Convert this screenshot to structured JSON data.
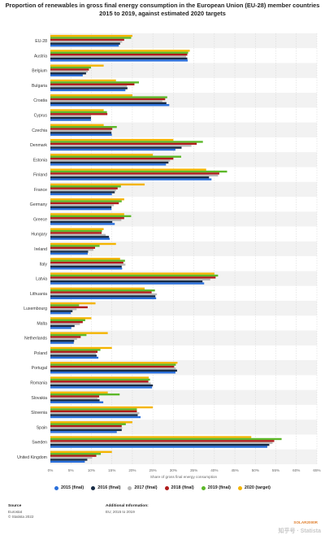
{
  "title": "Proportion of renewables in gross final energy consumption in the European Union (EU-28) member countries 2015 to 2019, against estimated 2020 targets",
  "legend": [
    {
      "label": "2015 (final)",
      "color": "#2a6fdb"
    },
    {
      "label": "2016 (final)",
      "color": "#172b45"
    },
    {
      "label": "2017 (final)",
      "color": "#b8b8b8"
    },
    {
      "label": "2018 (final)",
      "color": "#b01c1c"
    },
    {
      "label": "2019 (final)",
      "color": "#5cb829"
    },
    {
      "label": "2020 (target)",
      "color": "#f4b400"
    }
  ],
  "footer": {
    "source_heading": "Source",
    "source_lines": [
      "Eurostat",
      "© Statista 2022"
    ],
    "info_heading": "Additional Information:",
    "info_lines": [
      "EU; 2015 to 2019"
    ],
    "watermark_orange": "SOLAR2000R",
    "watermark_bottom": "知乎号 · Statista"
  },
  "chart_data": {
    "type": "bar",
    "orientation": "horizontal",
    "title": "Proportion of renewables in gross final energy consumption in the European Union (EU-28) member countries 2015 to 2019, against estimated 2020 targets",
    "xlabel": "Share of gross final energy consumption",
    "xlim": [
      0,
      65
    ],
    "xticks": [
      "0%",
      "5%",
      "10%",
      "15%",
      "20%",
      "25%",
      "30%",
      "35%",
      "40%",
      "45%",
      "50%",
      "55%",
      "60%",
      "65%"
    ],
    "grid": true,
    "legend_position": "bottom",
    "categories": [
      "EU-28",
      "Austria",
      "Belgium",
      "Bulgaria",
      "Croatia",
      "Cyprus",
      "Czechia",
      "Denmark",
      "Estonia",
      "Finland",
      "France",
      "Germany",
      "Greece",
      "Hungary",
      "Ireland",
      "Italy",
      "Latvia",
      "Lithuania",
      "Luxembourg",
      "Malta",
      "Netherlands",
      "Poland",
      "Portugal",
      "Romania",
      "Slovakia",
      "Slovenia",
      "Spain",
      "Sweden",
      "United Kingdom"
    ],
    "series": [
      {
        "name": "2015 (final)",
        "values": [
          16.7,
          33.5,
          7.9,
          18.3,
          29.0,
          9.9,
          15.0,
          30.5,
          28.2,
          39.3,
          15.0,
          14.9,
          15.7,
          14.5,
          9.1,
          17.5,
          37.5,
          25.8,
          5.0,
          5.1,
          5.7,
          11.7,
          30.5,
          24.8,
          12.9,
          22.0,
          16.2,
          52.9,
          8.4
        ]
      },
      {
        "name": "2016 (final)",
        "values": [
          17.0,
          33.4,
          8.7,
          18.8,
          28.3,
          9.9,
          14.9,
          32.0,
          28.8,
          38.7,
          15.7,
          14.9,
          15.1,
          14.3,
          9.2,
          17.4,
          37.1,
          25.6,
          5.4,
          5.9,
          5.8,
          11.3,
          30.9,
          25.0,
          12.0,
          21.3,
          17.4,
          53.4,
          9.0
        ]
      },
      {
        "name": "2017 (final)",
        "values": [
          17.5,
          33.1,
          9.1,
          18.7,
          27.3,
          9.9,
          14.8,
          34.4,
          29.2,
          40.9,
          16.0,
          15.5,
          17.3,
          13.5,
          10.5,
          18.3,
          39.0,
          26.0,
          6.4,
          7.2,
          6.5,
          11.1,
          30.6,
          24.5,
          11.5,
          21.7,
          17.5,
          54.2,
          10.2
        ]
      },
      {
        "name": "2018 (final)",
        "values": [
          18.0,
          33.4,
          9.4,
          20.5,
          28.0,
          13.9,
          15.1,
          35.7,
          30.0,
          41.2,
          16.4,
          16.7,
          18.0,
          12.5,
          10.9,
          17.8,
          40.3,
          24.7,
          9.1,
          7.9,
          7.4,
          11.5,
          30.2,
          23.9,
          11.9,
          21.1,
          17.4,
          54.6,
          11.2
        ]
      },
      {
        "name": "2019 (final)",
        "values": [
          19.7,
          33.6,
          9.9,
          21.6,
          28.5,
          13.8,
          16.2,
          37.2,
          31.9,
          43.1,
          17.2,
          17.4,
          19.7,
          12.6,
          12.0,
          18.2,
          40.9,
          25.5,
          7.0,
          8.5,
          8.8,
          12.2,
          30.6,
          24.3,
          16.9,
          21.1,
          18.4,
          56.4,
          12.3
        ]
      },
      {
        "name": "2020 (target)",
        "values": [
          20.0,
          34.0,
          13.0,
          16.0,
          20.0,
          13.0,
          13.0,
          30.0,
          25.0,
          38.0,
          23.0,
          18.0,
          18.0,
          13.0,
          16.0,
          17.0,
          40.0,
          23.0,
          11.0,
          10.0,
          14.0,
          15.0,
          31.0,
          24.0,
          14.0,
          25.0,
          20.0,
          49.0,
          15.0
        ]
      }
    ]
  }
}
